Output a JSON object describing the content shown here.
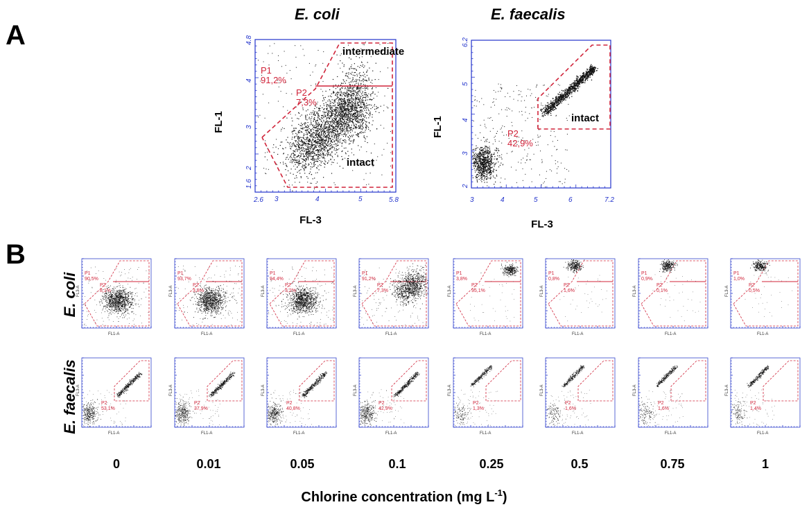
{
  "panel_a": {
    "letter": "A",
    "ecoli": {
      "title": "E. coli",
      "ylabel": "FL-1",
      "xlabel": "FL-3",
      "x_ticks": [
        "2.6",
        "3",
        "4",
        "5",
        "5.8"
      ],
      "y_ticks": [
        "1.6",
        "2",
        "3",
        "4",
        "4.8"
      ],
      "gate_p1_name": "P1",
      "gate_p1_value": "91,2%",
      "gate_p2_name": "P2",
      "gate_p2_value": "7,3%",
      "region_intermediate": "intermediate",
      "region_intact": "intact"
    },
    "efaecalis": {
      "title": "E. faecalis",
      "ylabel": "FL-1",
      "xlabel": "FL-3",
      "x_ticks": [
        "3",
        "4",
        "5",
        "6",
        "7.2"
      ],
      "y_ticks": [
        "2",
        "3",
        "4",
        "5",
        "6.2"
      ],
      "gate_p2_name": "P2",
      "gate_p2_value": "42,9%",
      "region_intact": "intact"
    }
  },
  "panel_b": {
    "letter": "B",
    "row_ecoli_label": "E. coli",
    "row_efaecalis_label": "E. faecalis",
    "small_ylabel": "FL3-A",
    "small_xlabel": "FL1-A",
    "concentrations": [
      "0",
      "0.01",
      "0.05",
      "0.1",
      "0.25",
      "0.5",
      "0.75",
      "1"
    ],
    "ecoli_p1": [
      "90,5%",
      "93,7%",
      "94,4%",
      "91,2%",
      "3,8%",
      "0,8%",
      "0,9%",
      "1,0%"
    ],
    "ecoli_p2": [
      "8,1%",
      "3,8%",
      "3,2%",
      "7,3%",
      "95,1%",
      "1,6%",
      "0,1%",
      "0,5%"
    ],
    "efaecalis_p2": [
      "53,1%",
      "37,9%",
      "40,8%",
      "42,9%",
      "1,3%",
      "1,6%",
      "1,6%",
      "1,4%"
    ],
    "xtitle_main": "Chlorine concentration (mg L",
    "xtitle_sup": "-1",
    "xtitle_end": ")"
  },
  "colors": {
    "axis": "#2233cc",
    "gate": "#d0243a",
    "dots": "#111111"
  }
}
